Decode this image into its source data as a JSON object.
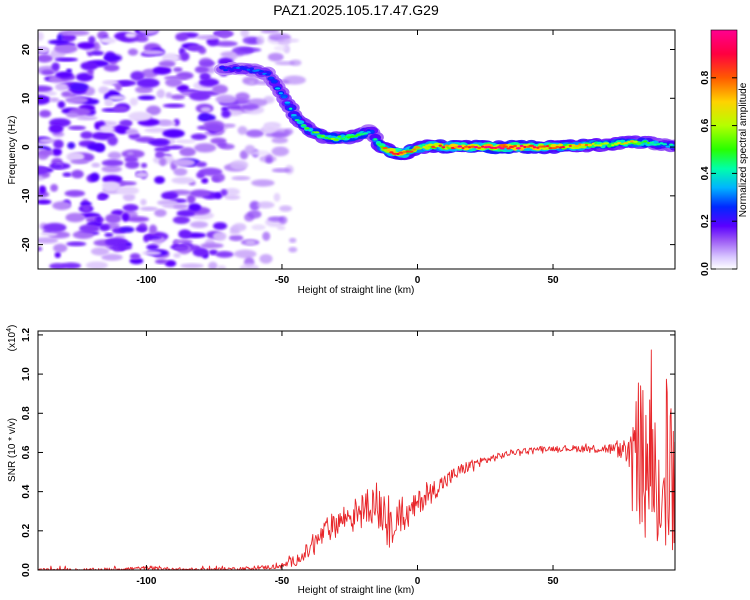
{
  "title": "PAZ1.2025.105.17.47.G29",
  "chart_data": [
    {
      "type": "heatmap",
      "xlabel": "Height of straight line (km)",
      "ylabel": "Frequency (Hz)",
      "xlim": [
        -140,
        95
      ],
      "ylim": [
        -25,
        24
      ],
      "x_ticks": [
        -100,
        -50,
        0,
        50
      ],
      "y_ticks": [
        -20,
        -10,
        0,
        10,
        20
      ],
      "colorbar": {
        "label": "Normalized spectral amplitude",
        "range": [
          0,
          1
        ],
        "ticks": [
          "0.0",
          "0.2",
          "0.4",
          "0.6",
          "0.8"
        ],
        "colormap": [
          "#ffffff",
          "#9b59f5",
          "#5a00ff",
          "#0028ff",
          "#00b4ff",
          "#00ffaa",
          "#28ff00",
          "#b4ff00",
          "#ffd200",
          "#ff5a00",
          "#ff0040",
          "#ff0090"
        ]
      },
      "ridge": {
        "x": [
          -72,
          -62,
          -55,
          -50,
          -45,
          -40,
          -35,
          -30,
          -25,
          -20,
          -17,
          -15,
          -12,
          -8,
          -4,
          0,
          5,
          10,
          20,
          30,
          40,
          50,
          60,
          70,
          80,
          85,
          90,
          95
        ],
        "y": [
          16,
          16,
          15,
          11,
          6,
          3.5,
          2.2,
          1.8,
          2,
          2.8,
          3.5,
          1,
          -0.4,
          -1.2,
          -1.2,
          -0.2,
          0.2,
          0.1,
          0,
          0,
          0,
          0,
          0.3,
          0.5,
          1,
          0.8,
          0.5,
          0.2
        ],
        "amplitude": [
          0.25,
          0.3,
          0.3,
          0.35,
          0.45,
          0.5,
          0.55,
          0.55,
          0.6,
          0.5,
          0.3,
          0.55,
          0.75,
          0.9,
          0.85,
          0.7,
          0.75,
          0.85,
          0.9,
          0.95,
          0.95,
          0.85,
          0.75,
          0.6,
          0.7,
          0.5,
          0.4,
          0.4
        ]
      },
      "noise_region": {
        "x": [
          -140,
          -50
        ],
        "y": [
          -25,
          24
        ],
        "amplitude_range": [
          0.02,
          0.2
        ]
      }
    },
    {
      "type": "line",
      "xlabel": "Height of straight line (km)",
      "ylabel": "SNR (10 * v/v)",
      "y_scale_label": "(x10",
      "y_scale_exp": "4",
      "y_scale_close": ")",
      "xlim": [
        -140,
        95
      ],
      "ylim": [
        0,
        1.22
      ],
      "x_ticks": [
        -100,
        -50,
        0,
        50
      ],
      "y_ticks": [
        "0.0",
        "0.2",
        "0.4",
        "0.6",
        "0.8",
        "1.0",
        "1.2"
      ],
      "color": "#e8262a",
      "series": [
        {
          "x": [
            -140,
            -120,
            -100,
            -80,
            -60,
            -50,
            -45,
            -40,
            -35,
            -30,
            -25,
            -20,
            -15,
            -12,
            -10,
            -8,
            -5,
            0,
            5,
            10,
            15,
            20,
            25,
            30,
            35,
            40,
            45,
            50,
            55,
            60,
            65,
            70,
            75,
            80,
            82,
            85,
            88,
            90,
            92,
            95
          ],
          "y": [
            0.0,
            0.0,
            0.01,
            0.0,
            0.01,
            0.02,
            0.05,
            0.1,
            0.18,
            0.24,
            0.28,
            0.32,
            0.35,
            0.3,
            0.18,
            0.3,
            0.25,
            0.34,
            0.4,
            0.45,
            0.5,
            0.54,
            0.56,
            0.58,
            0.6,
            0.61,
            0.62,
            0.62,
            0.62,
            0.62,
            0.62,
            0.62,
            0.61,
            0.6,
            0.5,
            0.6,
            0.65,
            0.6,
            0.55,
            0.6
          ],
          "envelope": {
            "x": [
              -140,
              -60,
              -50,
              -40,
              -30,
              -20,
              -15,
              -12,
              -10,
              -8,
              -5,
              0,
              10,
              20,
              30,
              40,
              50,
              60,
              70,
              78,
              80,
              82,
              84,
              86,
              88,
              90,
              92,
              95
            ],
            "low": [
              0.0,
              0.0,
              0.01,
              0.06,
              0.16,
              0.22,
              0.25,
              0.1,
              0.12,
              0.2,
              0.2,
              0.28,
              0.4,
              0.5,
              0.56,
              0.59,
              0.6,
              0.6,
              0.6,
              0.55,
              0.1,
              0.2,
              0.15,
              0.3,
              0.05,
              0.2,
              0.1,
              0.0
            ],
            "high": [
              0.02,
              0.02,
              0.04,
              0.16,
              0.32,
              0.38,
              0.48,
              0.42,
              0.36,
              0.42,
              0.36,
              0.42,
              0.5,
              0.56,
              0.6,
              0.62,
              0.63,
              0.64,
              0.66,
              0.66,
              0.9,
              1.0,
              0.95,
              1.22,
              0.8,
              1.0,
              1.1,
              0.9
            ]
          }
        }
      ]
    }
  ]
}
